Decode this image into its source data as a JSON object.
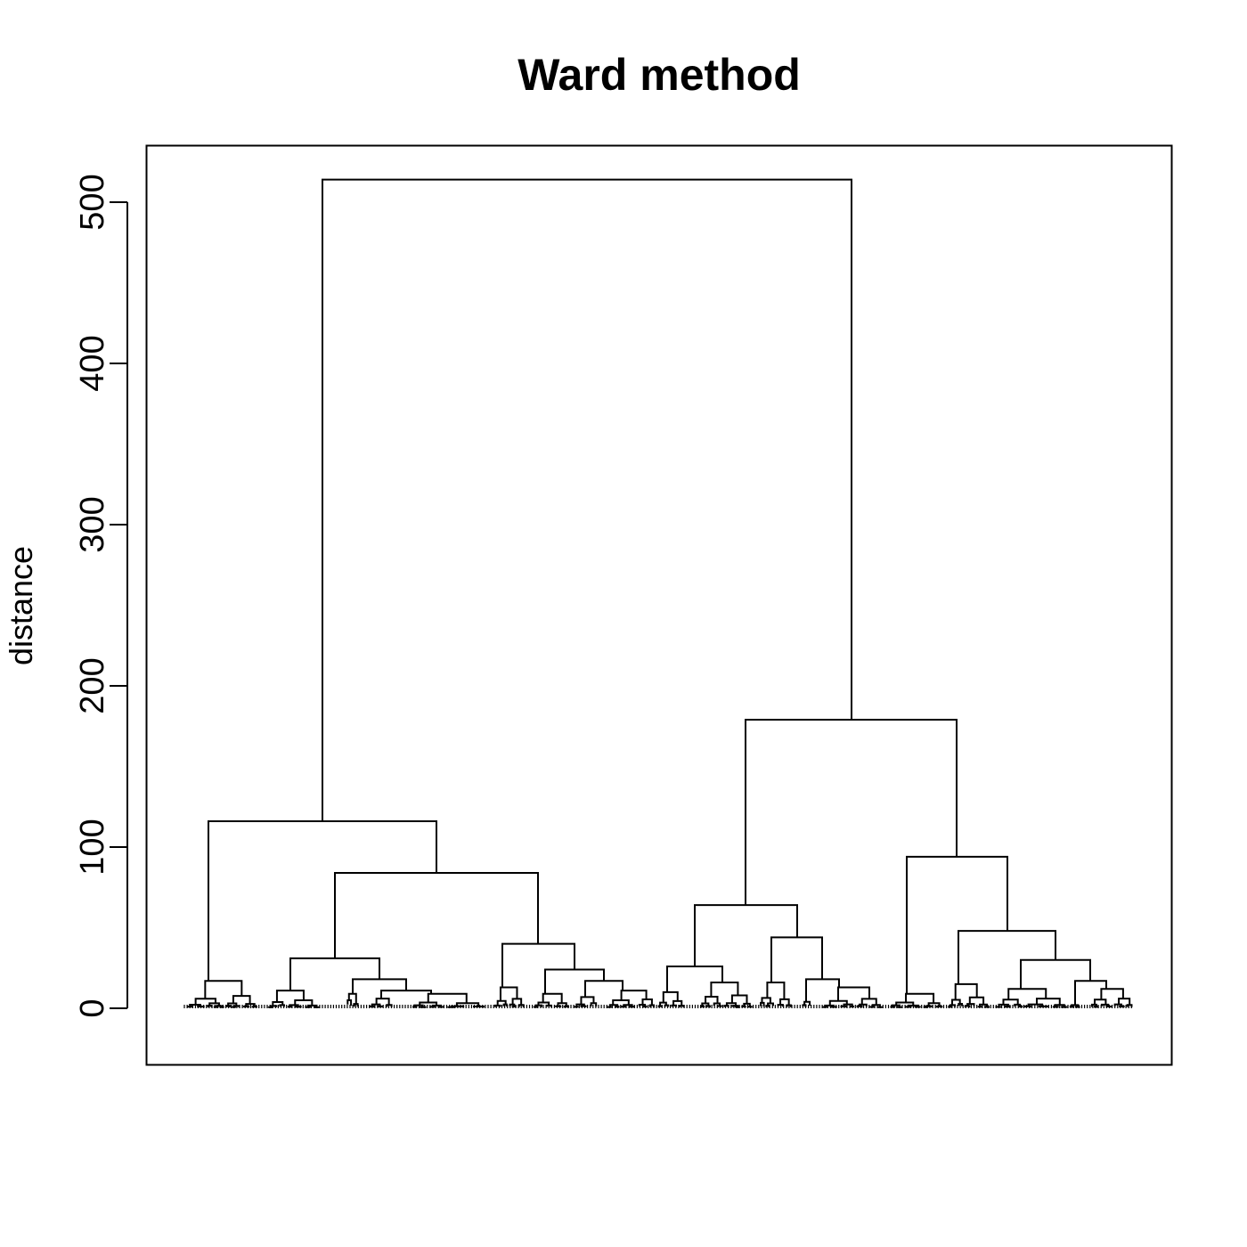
{
  "chart_data": {
    "type": "dendrogram",
    "title": "Ward method",
    "xlabel": "",
    "ylabel": "distance",
    "ylim": [
      -35,
      535
    ],
    "yticks": [
      0,
      100,
      200,
      300,
      400,
      500
    ],
    "ytick_labels": [
      "0",
      "100",
      "200",
      "300",
      "400",
      "500"
    ],
    "grid": false,
    "legend": "none",
    "line_color": "#000000",
    "merge_heights": {
      "root": 514,
      "left_cluster": 116,
      "left_right_subcluster": 84,
      "left_mid_group": 31,
      "left_end_group": 40,
      "right_cluster": 179,
      "right_left_subcluster": 64,
      "right_right_subcluster": 94,
      "right_inner_group": 48,
      "right_inner_subgroup": 30
    }
  }
}
